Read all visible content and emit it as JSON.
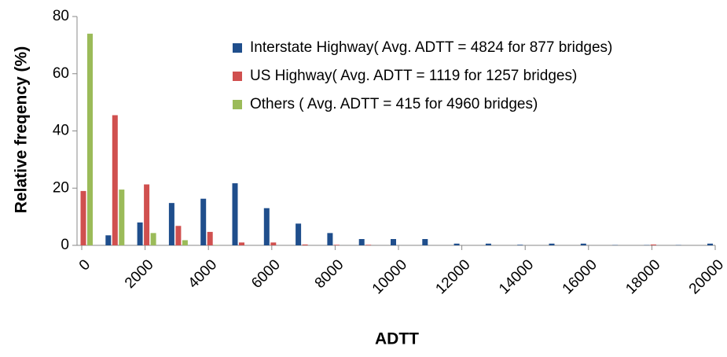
{
  "chart_data": {
    "type": "bar",
    "x": [
      0,
      1000,
      2000,
      3000,
      4000,
      5000,
      6000,
      7000,
      8000,
      9000,
      10000,
      11000,
      12000,
      13000,
      14000,
      15000,
      16000,
      17000,
      18000,
      19000,
      20000
    ],
    "series": [
      {
        "name": "Interstate Highway( Avg. ADTT = 4824 for 877 bridges)",
        "color": "#1f4e8c",
        "values": [
          0,
          3.5,
          8,
          14.8,
          16.3,
          21.7,
          13,
          7.6,
          4.3,
          2.2,
          2.2,
          2.2,
          0.6,
          0.6,
          0.2,
          0.6,
          0.6,
          0.1,
          0.1,
          0.1,
          0.6
        ]
      },
      {
        "name": "US Highway( Avg. ADTT = 1119 for 1257 bridges)",
        "color": "#d0504f",
        "values": [
          19,
          45.5,
          21.3,
          6.8,
          4.7,
          1,
          1,
          0.3,
          0.2,
          0.2,
          0,
          0,
          0,
          0,
          0,
          0,
          0,
          0,
          0.3,
          0,
          0
        ]
      },
      {
        "name": "Others ( Avg. ADTT = 415 for 4960 bridges)",
        "color": "#9bbb59",
        "values": [
          74,
          19.5,
          4.3,
          1.8,
          0.1,
          0,
          0,
          0,
          0,
          0,
          0,
          0,
          0,
          0,
          0,
          0,
          0,
          0,
          0,
          0,
          0
        ]
      }
    ],
    "xlabel": "ADTT",
    "ylabel": "Relative freqency (%)",
    "xlim": [
      0,
      20000
    ],
    "xticks": [
      0,
      2000,
      4000,
      6000,
      8000,
      10000,
      12000,
      14000,
      16000,
      18000,
      20000
    ],
    "ylim": [
      0,
      80
    ],
    "yticks": [
      0,
      20,
      40,
      60,
      80
    ],
    "legend": "upper right"
  }
}
